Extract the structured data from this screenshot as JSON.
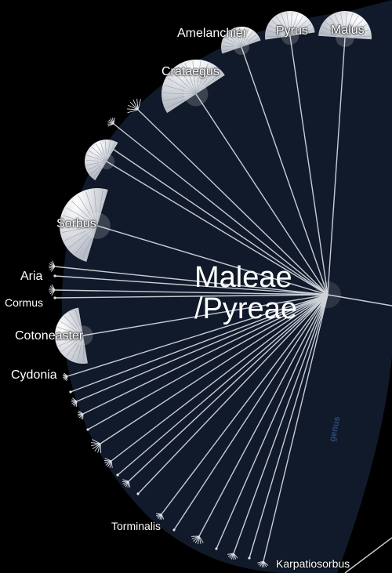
{
  "center": {
    "line1": "Maleae",
    "line2": "/Pyreae"
  },
  "rank_label": "genus",
  "nodes": {
    "amelanchier": "Amelanchier",
    "pyrus": "Pyrus",
    "malus": "Malus",
    "crataegus": "Crataegus",
    "sorbus": "Sorbus",
    "aria": "Aria",
    "cormus": "Cormus",
    "cotoneaster": "Cotoneaster",
    "cydonia": "Cydonia",
    "torminalis": "Torminalis",
    "karpatiosorbus": "Karpatiosorbus"
  },
  "colors": {
    "background": "#000000",
    "fan": "#111a2b",
    "branch": "#c8ccd4",
    "leaf_cap": "#dfe2e8",
    "rank_text": "#2b4a78"
  }
}
